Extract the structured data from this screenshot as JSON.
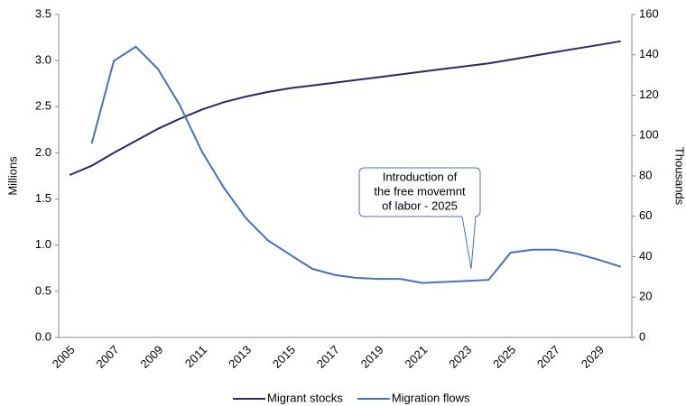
{
  "chart_data": {
    "type": "line",
    "categories": [
      "2005",
      null,
      "2007",
      null,
      "2009",
      null,
      "2011",
      null,
      "2013",
      null,
      "2015",
      null,
      "2017",
      null,
      "2019",
      null,
      "2021",
      null,
      "2023",
      null,
      "2025",
      null,
      "2027",
      null,
      "2029",
      null
    ],
    "series": [
      {
        "name": "Migrant stocks",
        "color": "#2b2769",
        "values": [
          1.76,
          1.86,
          2.0,
          2.13,
          2.26,
          2.37,
          2.47,
          2.55,
          2.61,
          2.66,
          2.7,
          2.73,
          2.76,
          2.79,
          2.82,
          2.85,
          2.88,
          2.91,
          2.94,
          2.97,
          3.01,
          3.05,
          3.09,
          3.13,
          3.17,
          3.21
        ]
      },
      {
        "name": "Migration flows",
        "color": "#4a6fbe",
        "axis": "y2",
        "values": [
          null,
          96,
          137,
          144,
          133,
          115,
          92,
          74,
          59,
          48,
          41,
          34,
          31,
          29.5,
          29,
          29,
          27,
          27.5,
          28,
          28.5,
          42,
          43.5,
          43.5,
          41.5,
          38.5,
          35
        ]
      }
    ],
    "ylabel": "Millions",
    "y2label": "Thousands",
    "ylim": [
      0,
      3.5
    ],
    "yticks": [
      {
        "value": 0,
        "label": "0.0"
      },
      0.5,
      {
        "value": 1,
        "label": "1.0"
      },
      1.5,
      {
        "value": 2,
        "label": "2.0"
      },
      2.5,
      {
        "value": 3,
        "label": "3.0"
      },
      3.5
    ],
    "y2lim": [
      0,
      160
    ],
    "y2ticks": [
      0,
      20,
      40,
      60,
      80,
      100,
      120,
      140,
      160
    ],
    "annotation": [
      "Introduction of",
      "the free movemnt",
      "of labor - 2025"
    ],
    "legend": "bottom"
  }
}
